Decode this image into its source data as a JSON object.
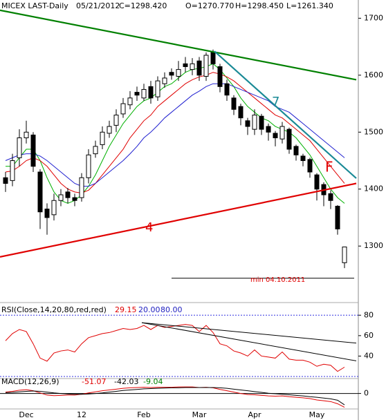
{
  "chart_data": [
    {
      "type": "candlestick",
      "header": [
        "MICEX LAST-Daily",
        "05/21/2012",
        "C=1298.420",
        "O=1270.770",
        "H=1298.450",
        "L=1261.340"
      ],
      "categories": [
        null,
        null,
        null,
        "Dec",
        null,
        null,
        null,
        null,
        null,
        null,
        null,
        "12",
        null,
        null,
        null,
        null,
        null,
        null,
        null,
        null,
        "Feb",
        null,
        null,
        null,
        null,
        null,
        null,
        null,
        "Mar",
        null,
        null,
        null,
        null,
        null,
        null,
        null,
        "Apr",
        null,
        null,
        null,
        null,
        null,
        null,
        null,
        null,
        "May",
        null,
        null,
        null,
        null
      ],
      "open": [
        1420,
        1415,
        1455,
        1490,
        1495,
        1430,
        1365,
        1355,
        1380,
        1395,
        1385,
        1385,
        1420,
        1462,
        1478,
        1498,
        1512,
        1532,
        1548,
        1570,
        1560,
        1580,
        1562,
        1585,
        1605,
        1598,
        1620,
        1610,
        1625,
        1598,
        1640,
        1615,
        1585,
        1560,
        1545,
        1520,
        1505,
        1528,
        1510,
        1498,
        1488,
        1505,
        1475,
        1458,
        1452,
        1425,
        1408,
        1392,
        1370,
        1270.77
      ],
      "high": [
        1430,
        1462,
        1505,
        1520,
        1500,
        1435,
        1375,
        1392,
        1400,
        1402,
        1392,
        1428,
        1470,
        1485,
        1510,
        1520,
        1540,
        1560,
        1572,
        1580,
        1585,
        1590,
        1598,
        1605,
        1612,
        1625,
        1632,
        1630,
        1632,
        1640,
        1645,
        1620,
        1592,
        1565,
        1550,
        1525,
        1540,
        1532,
        1515,
        1502,
        1518,
        1508,
        1478,
        1462,
        1455,
        1428,
        1412,
        1398,
        1372,
        1298.45
      ],
      "low": [
        1395,
        1405,
        1440,
        1480,
        1430,
        1330,
        1320,
        1345,
        1370,
        1375,
        1370,
        1378,
        1410,
        1455,
        1470,
        1490,
        1500,
        1525,
        1540,
        1555,
        1555,
        1550,
        1555,
        1578,
        1592,
        1590,
        1605,
        1600,
        1590,
        1590,
        1610,
        1570,
        1555,
        1530,
        1512,
        1495,
        1495,
        1495,
        1485,
        1475,
        1480,
        1462,
        1450,
        1440,
        1420,
        1380,
        1370,
        1365,
        1320,
        1261.34
      ],
      "close": [
        1410,
        1450,
        1490,
        1500,
        1440,
        1360,
        1350,
        1380,
        1390,
        1385,
        1380,
        1420,
        1460,
        1475,
        1500,
        1510,
        1530,
        1550,
        1560,
        1565,
        1575,
        1560,
        1590,
        1595,
        1600,
        1610,
        1615,
        1620,
        1600,
        1635,
        1620,
        1580,
        1565,
        1540,
        1525,
        1510,
        1530,
        1505,
        1500,
        1490,
        1510,
        1470,
        1460,
        1450,
        1430,
        1400,
        1390,
        1380,
        1330,
        1298.42
      ],
      "series": [
        {
          "color": "#00b000",
          "values": [
            1440,
            1440,
            1455,
            1470,
            1470,
            1450,
            1420,
            1395,
            1380,
            1375,
            1380,
            1390,
            1405,
            1425,
            1450,
            1475,
            1495,
            1515,
            1530,
            1545,
            1555,
            1560,
            1570,
            1580,
            1585,
            1595,
            1605,
            1610,
            1612,
            1615,
            1620,
            1610,
            1595,
            1580,
            1560,
            1545,
            1535,
            1525,
            1520,
            1510,
            1505,
            1500,
            1490,
            1475,
            1460,
            1440,
            1420,
            1400,
            1385,
            1375
          ]
        },
        {
          "color": "#e00000",
          "values": [
            1430,
            1432,
            1440,
            1450,
            1455,
            1450,
            1440,
            1425,
            1410,
            1400,
            1395,
            1393,
            1398,
            1410,
            1425,
            1440,
            1455,
            1470,
            1490,
            1505,
            1520,
            1530,
            1545,
            1555,
            1565,
            1575,
            1585,
            1592,
            1597,
            1600,
            1605,
            1602,
            1597,
            1590,
            1580,
            1570,
            1560,
            1550,
            1540,
            1530,
            1525,
            1515,
            1505,
            1495,
            1485,
            1470,
            1455,
            1440,
            1425,
            1410
          ]
        },
        {
          "color": "#2020d0",
          "values": [
            1450,
            1455,
            1460,
            1462,
            1462,
            1458,
            1450,
            1440,
            1430,
            1420,
            1410,
            1405,
            1405,
            1410,
            1420,
            1430,
            1440,
            1450,
            1462,
            1475,
            1490,
            1500,
            1512,
            1525,
            1535,
            1545,
            1555,
            1565,
            1572,
            1580,
            1585,
            1585,
            1585,
            1580,
            1575,
            1570,
            1565,
            1560,
            1555,
            1545,
            1540,
            1535,
            1525,
            1515,
            1505,
            1495,
            1485,
            1475,
            1465,
            1455
          ]
        }
      ],
      "trendlines": [
        {
          "color": "#008000",
          "x": [
            -0.8,
            50.7
          ],
          "y": [
            1714,
            1592
          ]
        },
        {
          "color": "#1a8a96",
          "x": [
            30.2,
            50.7
          ],
          "y": [
            1642,
            1419
          ]
        },
        {
          "color": "#e00000",
          "x": [
            -0.8,
            50.7
          ],
          "y": [
            1281,
            1410
          ]
        },
        {
          "color": "#000000",
          "x": [
            24,
            50.4
          ],
          "y": [
            1243.6,
            1243.6
          ]
        }
      ],
      "annotations": [
        {
          "text": "7",
          "color": "#1a8a96"
        },
        {
          "text": "F",
          "color": "#e00000"
        },
        {
          "text": "4",
          "color": "#e00000"
        },
        {
          "text": "min 04.10.2011",
          "color": "#e00000"
        }
      ],
      "ylim": [
        1202,
        1732
      ],
      "yticks": [
        1300,
        1400,
        1500,
        1600,
        1700
      ]
    },
    {
      "type": "line",
      "header": "RSI(Close,14,20,80,red,red)",
      "series": [
        {
          "color": "#e00000",
          "values": [
            55,
            62,
            66,
            64,
            52,
            38,
            35,
            43,
            45,
            46,
            44,
            52,
            58,
            60,
            62,
            63,
            65,
            67,
            66,
            67,
            70,
            66,
            70,
            68,
            69,
            70,
            71,
            70,
            64,
            70,
            63,
            52,
            50,
            45,
            43,
            40,
            46,
            40,
            39,
            38,
            44,
            37,
            36,
            36,
            34,
            30,
            32,
            31,
            25,
            29.15
          ]
        }
      ],
      "levels": [
        {
          "value": 20,
          "label": "20.00"
        },
        {
          "value": 80,
          "label": "80.00"
        }
      ],
      "trendlines": [
        {
          "color": "#000000",
          "x": [
            19.7,
            50.7
          ],
          "y": [
            72.7,
            52.7
          ]
        },
        {
          "color": "#000000",
          "x": [
            19.7,
            50.7
          ],
          "y": [
            72.7,
            35.3
          ]
        }
      ],
      "ylim": [
        18,
        91
      ],
      "yticks": [
        40,
        60,
        80
      ]
    },
    {
      "type": "line",
      "header": "MACD(12,26,9)",
      "diff_label": "-9.04",
      "series": [
        {
          "color": "#e00000",
          "values": [
            5,
            8,
            12,
            14,
            10,
            2,
            -6,
            -8,
            -7,
            -6,
            -6,
            -3,
            2,
            6,
            10,
            13,
            16,
            19,
            21,
            22,
            23,
            22,
            23,
            23,
            23,
            24,
            24,
            24,
            22,
            23,
            21,
            15,
            10,
            5,
            0,
            -4,
            -5,
            -7,
            -9,
            -10,
            -9,
            -12,
            -14,
            -16,
            -19,
            -24,
            -27,
            -30,
            -38,
            -51.07
          ]
        },
        {
          "color": "#000000",
          "values": [
            3,
            4,
            6,
            8,
            9,
            8,
            5,
            2,
            0,
            -2,
            -3,
            -3,
            -2,
            0,
            2,
            5,
            8,
            11,
            13,
            15,
            17,
            18,
            19,
            20,
            21,
            21,
            22,
            22,
            22,
            22,
            22,
            21,
            19,
            16,
            13,
            10,
            7,
            4,
            1,
            -1,
            -3,
            -5,
            -7,
            -9,
            -12,
            -14,
            -17,
            -20,
            -25,
            -42.03
          ]
        }
      ],
      "ylim": [
        -70,
        50
      ],
      "yticks": [
        0
      ]
    }
  ]
}
